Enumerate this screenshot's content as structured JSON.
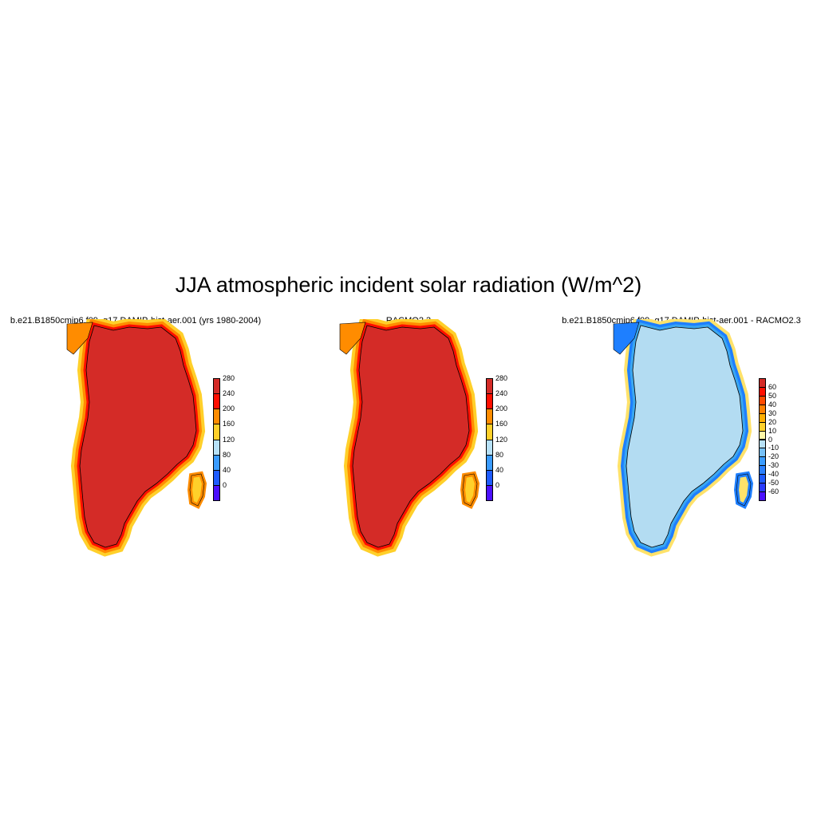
{
  "title": "JJA atmospheric incident solar radiation (W/m^2)",
  "panels": [
    {
      "title": "b.e21.B1850cmip6.f09_g17.DAMIP-hist-aer.001 (yrs 1980-2004)",
      "interior_color": "#d42b27",
      "ring_colors": [
        "#ff0f00",
        "#ff8c00",
        "#ffd02a"
      ],
      "colorbar": {
        "colors": [
          "#4b10ff",
          "#1e5bff",
          "#3a9bff",
          "#b7e1f7",
          "#ffd02a",
          "#ff8c00",
          "#ff0f00",
          "#d42b27"
        ],
        "ticks": [
          "0",
          "40",
          "80",
          "120",
          "160",
          "200",
          "240",
          "280"
        ]
      }
    },
    {
      "title": "RACMO2.3",
      "interior_color": "#d42b27",
      "ring_colors": [
        "#ff0f00",
        "#ff8c00",
        "#ffd02a"
      ],
      "colorbar": {
        "colors": [
          "#4b10ff",
          "#1e5bff",
          "#3a9bff",
          "#b7e1f7",
          "#ffd02a",
          "#ff8c00",
          "#ff0f00",
          "#d42b27"
        ],
        "ticks": [
          "0",
          "40",
          "80",
          "120",
          "160",
          "200",
          "240",
          "280"
        ]
      }
    },
    {
      "title": "b.e21.B1850cmip6.f09_g17.DAMIP-hist-aer.001 - RACMO2.3",
      "interior_color": "#b3dcf2",
      "ring_colors": [
        "#3ba7f0",
        "#1e7fff",
        "#ffe26a"
      ],
      "colorbar": {
        "colors": [
          "#4b10ff",
          "#2a3cff",
          "#1e5bff",
          "#2b80ff",
          "#3a9bff",
          "#75c0f8",
          "#b7e1f7",
          "#fff7a8",
          "#ffd02a",
          "#ffae00",
          "#ff8000",
          "#ff4a00",
          "#ff0f00",
          "#d42b27"
        ],
        "ticks": [
          "-60",
          "-50",
          "-40",
          "-30",
          "-20",
          "-10",
          "0",
          "10",
          "20",
          "30",
          "40",
          "50",
          "60"
        ]
      }
    }
  ]
}
